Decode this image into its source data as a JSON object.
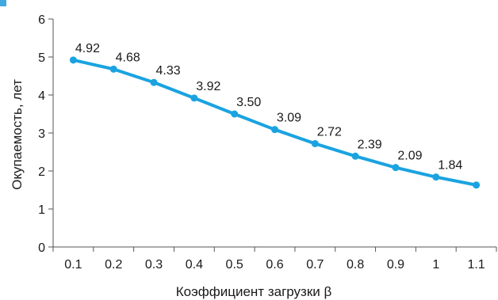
{
  "chart_data": {
    "type": "line",
    "title": "",
    "xlabel": "Коэффициент загрузки β",
    "ylabel": "Окупаемость, лет",
    "x_ticks": [
      "0.1",
      "0.2",
      "0.3",
      "0.4",
      "0.5",
      "0.6",
      "0.7",
      "0.8",
      "0.9",
      "1",
      "1.1"
    ],
    "x": [
      0.1,
      0.2,
      0.3,
      0.4,
      0.5,
      0.6,
      0.7,
      0.8,
      0.9,
      1.0,
      1.1
    ],
    "y_ticks": [
      "0",
      "1",
      "2",
      "3",
      "4",
      "5",
      "6"
    ],
    "ylim": [
      0,
      6
    ],
    "grid": false,
    "legend": "none",
    "series": [
      {
        "values": [
          4.92,
          4.68,
          4.33,
          3.92,
          3.5,
          3.09,
          2.72,
          2.39,
          2.09,
          1.84,
          1.63
        ],
        "labels": [
          "4.92",
          "4.68",
          "4.33",
          "3.92",
          "3.50",
          "3.09",
          "2.72",
          "2.39",
          "2.09",
          "1.84",
          ""
        ],
        "color": "#1aa3e0"
      }
    ],
    "axis_color": "#555555"
  }
}
